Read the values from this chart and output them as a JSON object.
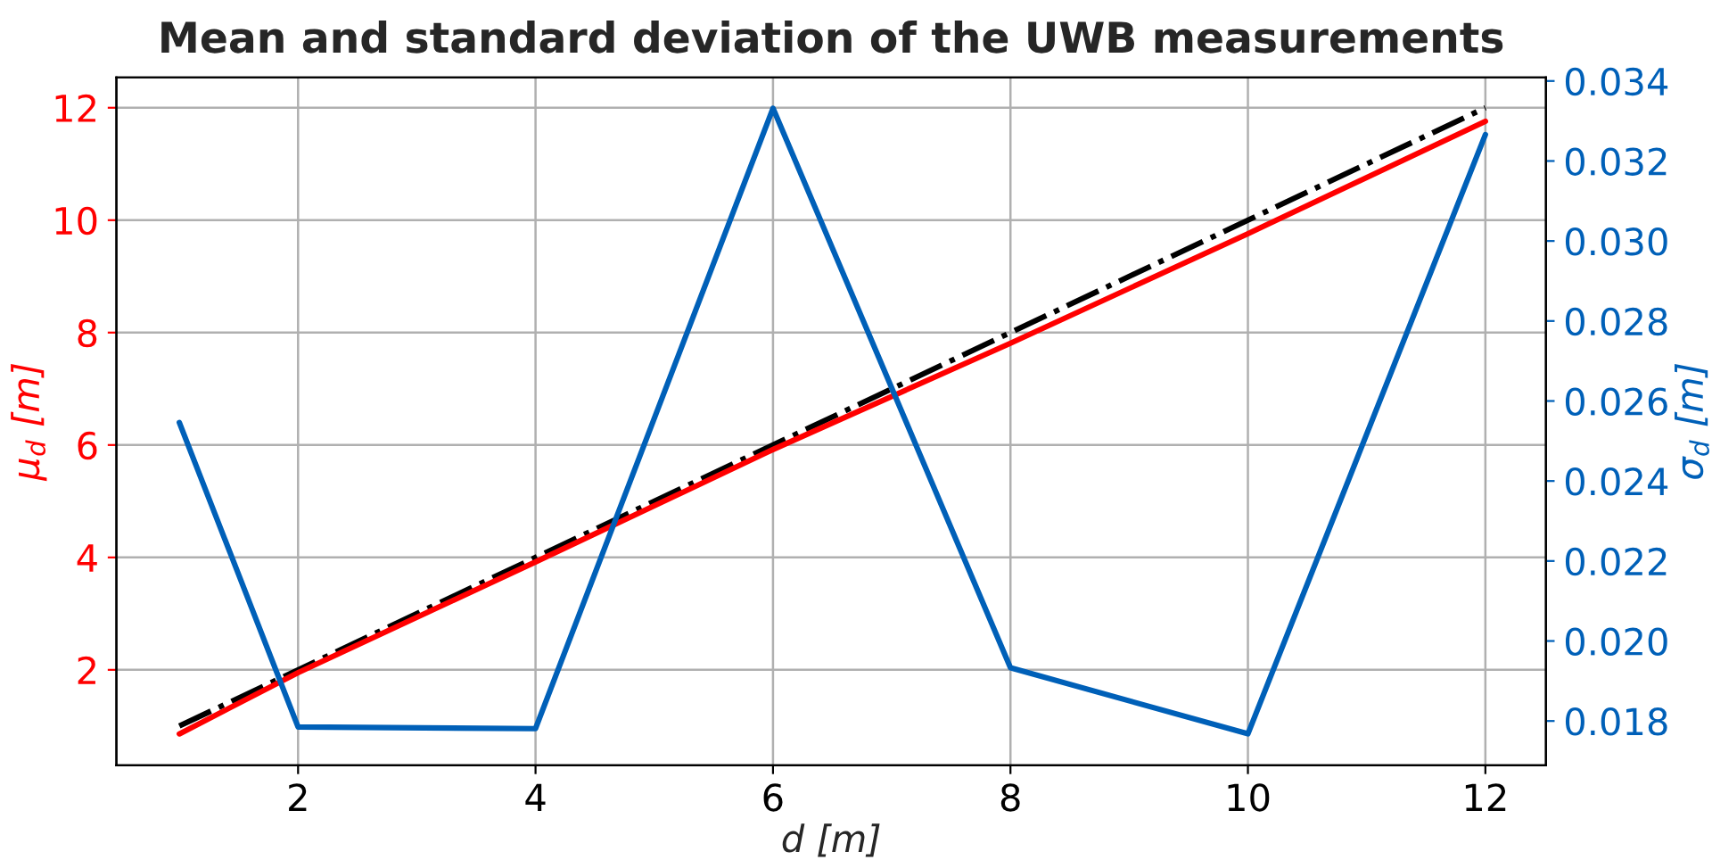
{
  "chart_data": {
    "type": "line",
    "title": "Mean and standard deviation of the UWB measurements",
    "xlabel": "d [m]",
    "ylabel": "μ$_{d}$ [m]",
    "y2label": "σ$_{d}$ [m]",
    "x": [
      1,
      2,
      4,
      6,
      8,
      10,
      12
    ],
    "series": [
      {
        "color": "#000000",
        "line_style": "dashdot",
        "x": [
          1,
          12
        ],
        "values": [
          1,
          12
        ]
      },
      {
        "color": "#ff0000",
        "line_style": "solid",
        "values": [
          0.86,
          1.95,
          3.92,
          5.92,
          7.81,
          9.76,
          11.76
        ]
      },
      {
        "color": "#0060b8",
        "line_style": "solid",
        "axis": "y2",
        "values": [
          0.02546,
          0.01785,
          0.01781,
          0.03332,
          0.01933,
          0.01768,
          0.03266
        ]
      }
    ],
    "xlim": [
      0.47,
      12.51
    ],
    "ylim": [
      0.3,
      12.54
    ],
    "y2lim": [
      0.01689,
      0.03409
    ],
    "xticks": [
      2,
      4,
      6,
      8,
      10,
      12
    ],
    "yticks": [
      2,
      4,
      6,
      8,
      10,
      12
    ],
    "y2ticks": [
      0.018,
      {
        "value": 0.02,
        "label": "0.020"
      },
      0.022,
      0.024,
      0.026,
      0.028,
      {
        "value": 0.03,
        "label": "0.030"
      },
      0.032,
      0.034
    ],
    "grid": true,
    "legend": false
  }
}
